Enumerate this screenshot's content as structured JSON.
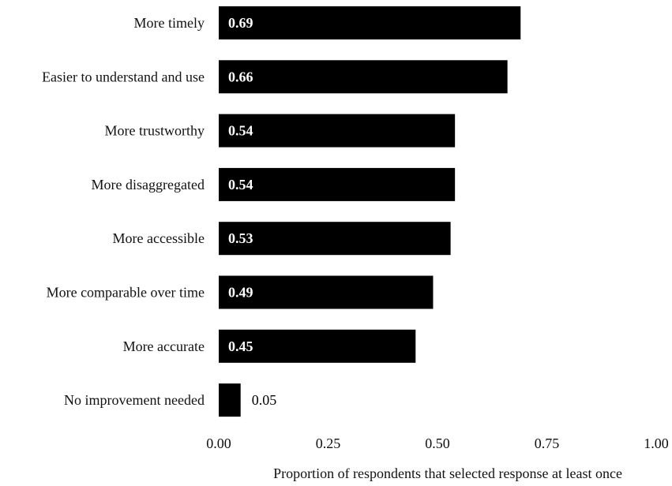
{
  "chart_data": {
    "type": "bar",
    "orientation": "horizontal",
    "categories": [
      "More timely",
      "Easier to understand and use",
      "More trustworthy",
      "More disaggregated",
      "More accessible",
      "More comparable over time",
      "More accurate",
      "No improvement needed"
    ],
    "values": [
      0.69,
      0.66,
      0.54,
      0.54,
      0.53,
      0.49,
      0.45,
      0.05
    ],
    "value_labels": [
      "0.69",
      "0.66",
      "0.54",
      "0.54",
      "0.53",
      "0.49",
      "0.45",
      "0.05"
    ],
    "title": "",
    "xlabel": "Proportion of respondents that selected response at least once",
    "ylabel": "",
    "xlim": [
      0,
      1
    ],
    "x_ticks": [
      0,
      0.25,
      0.5,
      0.75,
      1
    ],
    "x_tick_labels": [
      "0.00",
      "0.25",
      "0.50",
      "0.75",
      "1.00"
    ],
    "grid": false,
    "legend": "none",
    "bar_color": "#000000",
    "label_inside_color": "#ffffff",
    "label_outside_color": "#000000"
  }
}
